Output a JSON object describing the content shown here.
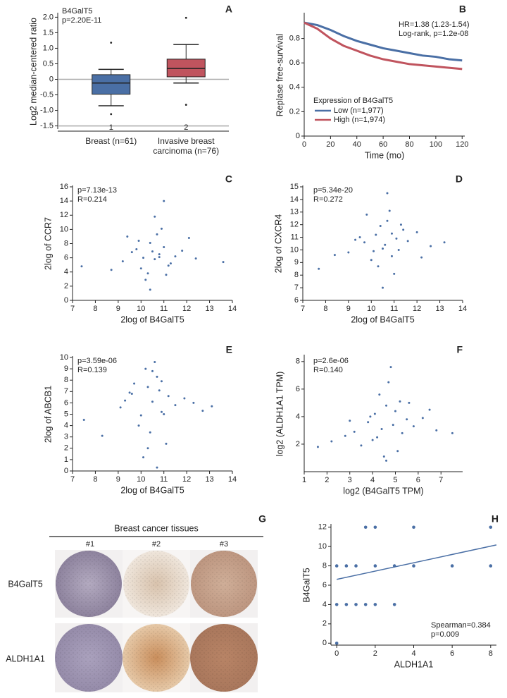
{
  "chart_data": [
    {
      "type": "box",
      "panel_label": "A",
      "ylabel": "Log2 median-centered ratio",
      "annotations": [
        "B4GalT5",
        "p=2.20E-11"
      ],
      "categories": [
        "Breast (n=61)",
        "Invasive breast carcinoma (n=76)"
      ],
      "x_sublabels": [
        "1",
        "2"
      ],
      "boxes": [
        {
          "color": "#4a6fa5",
          "whisker_low": -0.85,
          "q1": -0.48,
          "median": -0.12,
          "q3": 0.15,
          "whisker_high": 0.32,
          "outliers": [
            1.18,
            -1.12
          ]
        },
        {
          "color": "#c0545e",
          "whisker_low": -0.12,
          "q1": 0.08,
          "median": 0.35,
          "q3": 0.65,
          "whisker_high": 1.12,
          "outliers": [
            1.98,
            -0.82
          ]
        }
      ],
      "hlines": [
        0,
        -1.5
      ],
      "ylim": [
        -1.6,
        2.1
      ],
      "yticks": [
        {
          "value": 2,
          "label": "2.0"
        },
        1.5,
        {
          "value": 1,
          "label": "1.0"
        },
        0.5,
        0,
        -0.5,
        {
          "value": -1,
          "label": "-1.0"
        },
        -1.5
      ]
    },
    {
      "type": "line",
      "panel_label": "B",
      "xlabel": "Time (mo)",
      "ylabel": "Replase free-survival",
      "annotations": [
        "HR=1.38 (1.23-1.54)",
        "Log-rank, p=1.2e-08"
      ],
      "legend_title": "Expression of B4GalT5",
      "x": [
        0,
        10,
        20,
        30,
        40,
        50,
        60,
        70,
        80,
        90,
        100,
        110,
        120
      ],
      "series": [
        {
          "name": "Low (n=1,977)",
          "color": "#4a6fa5",
          "values": [
            0.93,
            0.91,
            0.87,
            0.82,
            0.78,
            0.75,
            0.72,
            0.7,
            0.68,
            0.66,
            0.65,
            0.63,
            0.62
          ]
        },
        {
          "name": "High (n=1,974)",
          "color": "#c0545e",
          "values": [
            0.93,
            0.88,
            0.8,
            0.74,
            0.7,
            0.66,
            0.63,
            0.61,
            0.59,
            0.58,
            0.57,
            0.56,
            0.55
          ]
        }
      ],
      "xlim": [
        0,
        122
      ],
      "xticks": [
        0,
        20,
        40,
        60,
        80,
        100,
        120
      ],
      "ylim": [
        0,
        1
      ],
      "yticks": [
        0,
        0.2,
        0.4,
        0.6,
        0.8
      ]
    },
    {
      "type": "scatter",
      "panel_label": "C",
      "xlabel": "2log of B4GalT5",
      "ylabel": "2log of CCR7",
      "annotations": [
        "p=7.13e-13",
        "R=0.214"
      ],
      "color": "#4a6fa5",
      "x": [
        9.2,
        9.8,
        10.1,
        10.4,
        10.6,
        10.8,
        11.0,
        11.2,
        10.3,
        10.7,
        9.6,
        10.9,
        11.5,
        10.0,
        10.5,
        11.3,
        9.9,
        10.2,
        11.8,
        8.7,
        12.4,
        10.6,
        11.1,
        9.4,
        10.8,
        13.6,
        7.4,
        11.0,
        10.4,
        12.1
      ],
      "values": [
        5.5,
        7.2,
        6.0,
        8.1,
        5.8,
        6.5,
        7.5,
        4.9,
        3.8,
        9.3,
        6.8,
        10.1,
        6.2,
        4.5,
        6.9,
        5.2,
        8.4,
        2.9,
        7.0,
        4.3,
        5.9,
        11.8,
        3.6,
        9.0,
        6.1,
        5.4,
        4.8,
        14.0,
        1.5,
        8.8
      ],
      "xlim": [
        7,
        14
      ],
      "xticks": [
        7,
        8,
        9,
        10,
        11,
        12,
        13,
        14
      ],
      "ylim": [
        0,
        16
      ],
      "yticks": [
        0,
        2,
        4,
        6,
        8,
        10,
        12,
        14,
        16
      ]
    },
    {
      "type": "scatter",
      "panel_label": "D",
      "xlabel": "2log of B4GalT5",
      "ylabel": "2log of CXCR4",
      "annotations": [
        "p=5.34e-20",
        "R=0.272"
      ],
      "color": "#4a6fa5",
      "x": [
        9.0,
        9.7,
        10.2,
        10.5,
        10.7,
        10.9,
        11.1,
        11.4,
        10.3,
        10.6,
        9.5,
        10.8,
        11.6,
        10.0,
        10.4,
        11.2,
        9.8,
        10.1,
        12.0,
        8.4,
        12.6,
        10.7,
        11.0,
        9.3,
        10.9,
        13.2,
        7.7,
        11.3,
        10.5,
        12.2
      ],
      "values": [
        9.8,
        10.6,
        11.2,
        10.1,
        12.3,
        9.5,
        10.9,
        11.6,
        8.7,
        10.4,
        11.0,
        13.1,
        10.7,
        9.2,
        11.9,
        10.0,
        12.8,
        9.9,
        11.4,
        9.6,
        10.3,
        14.5,
        8.1,
        10.8,
        11.3,
        10.6,
        8.5,
        12.0,
        7.0,
        9.4
      ],
      "xlim": [
        7,
        14
      ],
      "xticks": [
        7,
        8,
        9,
        10,
        11,
        12,
        13,
        14
      ],
      "ylim": [
        6,
        15
      ],
      "yticks": [
        6,
        7,
        8,
        9,
        10,
        11,
        12,
        13,
        14,
        15
      ]
    },
    {
      "type": "scatter",
      "panel_label": "E",
      "xlabel": "2log of B4GalT5",
      "ylabel": "2log of ABCB1",
      "annotations": [
        "p=3.59e-06",
        "R=0.139"
      ],
      "color": "#4a6fa5",
      "x": [
        9.1,
        9.6,
        10.0,
        10.3,
        10.5,
        10.7,
        10.9,
        11.2,
        10.4,
        10.6,
        9.3,
        10.8,
        11.5,
        9.9,
        10.2,
        11.0,
        9.7,
        10.1,
        11.9,
        8.3,
        12.7,
        10.5,
        11.1,
        9.5,
        10.7,
        13.1,
        7.5,
        10.9,
        10.3,
        12.3
      ],
      "values": [
        5.6,
        6.8,
        4.9,
        7.4,
        6.1,
        8.3,
        5.2,
        6.6,
        3.4,
        9.6,
        6.2,
        7.1,
        5.8,
        4.0,
        9.0,
        5.0,
        7.7,
        1.2,
        6.4,
        3.1,
        5.3,
        8.8,
        2.4,
        6.9,
        0.3,
        5.7,
        4.5,
        7.9,
        2.0,
        6.0
      ],
      "xlim": [
        7,
        14
      ],
      "xticks": [
        7,
        8,
        9,
        10,
        11,
        12,
        13,
        14
      ],
      "ylim": [
        0,
        10
      ],
      "yticks": [
        0,
        1,
        2,
        3,
        4,
        5,
        6,
        7,
        8,
        9,
        10
      ]
    },
    {
      "type": "scatter",
      "panel_label": "F",
      "xlabel": "log2 (B4GalT5 TPM)",
      "ylabel": "log2 (ALDH1A1 TPM)",
      "annotations": [
        "p=2.6e-06",
        "R=0.140"
      ],
      "color": "#4a6fa5",
      "x": [
        3.2,
        3.8,
        4.1,
        4.4,
        4.6,
        4.9,
        5.2,
        5.5,
        4.0,
        4.7,
        2.8,
        5.0,
        5.8,
        3.5,
        4.3,
        5.3,
        3.9,
        4.5,
        6.2,
        2.2,
        6.8,
        4.8,
        5.1,
        3.0,
        4.2,
        7.5,
        1.6,
        5.6,
        4.6,
        6.5
      ],
      "values": [
        2.9,
        3.6,
        4.2,
        3.1,
        4.8,
        3.4,
        5.1,
        3.8,
        2.3,
        6.5,
        2.6,
        4.4,
        3.3,
        1.9,
        5.6,
        2.8,
        4.0,
        1.1,
        3.9,
        2.2,
        3.0,
        7.6,
        1.5,
        3.7,
        2.5,
        2.8,
        1.8,
        5.0,
        0.8,
        4.5
      ],
      "xlim": [
        1,
        7.95
      ],
      "xticks": [
        1,
        2,
        3,
        4,
        5,
        6,
        7
      ],
      "ylim": [
        0,
        8.4
      ],
      "yticks": [
        2,
        4,
        6,
        8
      ]
    },
    {
      "type": "scatter",
      "panel_label": "H",
      "xlabel": "ALDH1A1",
      "ylabel": "B4GalT5",
      "annotations": [
        "Spearman=0.384",
        "p=0.009"
      ],
      "color": "#4a6fa5",
      "x": [
        0,
        0.5,
        1,
        2,
        3,
        4,
        6,
        8,
        1.5,
        2,
        4,
        8,
        0,
        0.5,
        1,
        1.5,
        2,
        3,
        0
      ],
      "values": [
        8,
        8,
        8,
        8,
        8,
        8,
        8,
        8,
        12,
        12,
        12,
        12,
        4,
        4,
        4,
        4,
        4,
        4,
        0
      ],
      "fit": {
        "intercept": 6.6,
        "slope": 0.43
      },
      "xlim": [
        -0.3,
        8.3
      ],
      "xticks": [
        0,
        2,
        4,
        6,
        8
      ],
      "ylim": [
        -0.2,
        12.2
      ],
      "yticks": [
        0,
        2,
        4,
        6,
        8,
        10,
        12
      ]
    }
  ],
  "tissue_panel": {
    "panel_label": "G",
    "title": "Breast cancer tissues",
    "columns": [
      "#1",
      "#2",
      "#3"
    ],
    "rows": [
      "B4GalT5",
      "ALDH1A1"
    ]
  }
}
